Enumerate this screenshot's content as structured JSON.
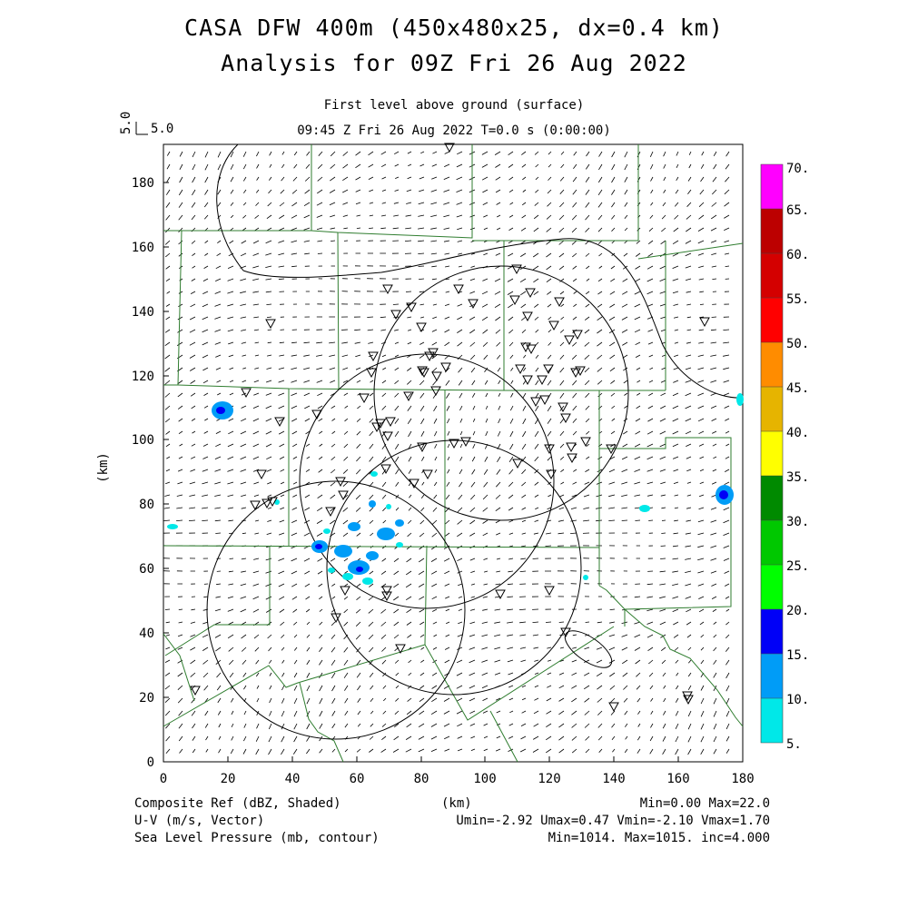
{
  "title": {
    "line1": "CASA DFW 400m (450x480x25, dx=0.4 km)",
    "line2": "Analysis for 09Z Fri 26 Aug 2022"
  },
  "subtitle": {
    "level": "First level above ground (surface)",
    "time": "09:45 Z Fri 26 Aug 2022    T=0.0 s (0:00:00)"
  },
  "vector_scale": {
    "rotated": "5.0",
    "label": "5.0"
  },
  "axes": {
    "xlabel": "(km)",
    "ylabel": "(km)",
    "xlim": [
      0,
      180
    ],
    "ylim": [
      0,
      192
    ],
    "xticks": [
      "0",
      "20",
      "40",
      "60",
      "80",
      "100",
      "120",
      "140",
      "160",
      "180"
    ],
    "yticks": [
      "0",
      "20",
      "40",
      "60",
      "80",
      "100",
      "120",
      "140",
      "160",
      "180"
    ]
  },
  "colorbar": {
    "labels": [
      "5.",
      "10.",
      "15.",
      "20.",
      "25.",
      "30.",
      "35.",
      "40.",
      "45.",
      "50.",
      "55.",
      "60.",
      "65.",
      "70."
    ],
    "colors": [
      "#00e8e8",
      "#009cf7",
      "#0000f7",
      "#00ff00",
      "#00c800",
      "#008a00",
      "#ffff00",
      "#e6b400",
      "#ff8c00",
      "#ff0000",
      "#d40000",
      "#bc0000",
      "#ff00ff"
    ]
  },
  "footer": {
    "left1": "Composite Ref (dBZ, Shaded)",
    "left2": "U-V (m/s, Vector)",
    "left3": "Sea Level Pressure (mb, contour)",
    "center": "(km)",
    "right1": "Min=0.00 Max=22.0",
    "right2": "Umin=-2.92 Umax=0.47 Vmin=-2.10 Vmax=1.70",
    "right3": "Min=1014. Max=1015. inc=4.000"
  }
}
